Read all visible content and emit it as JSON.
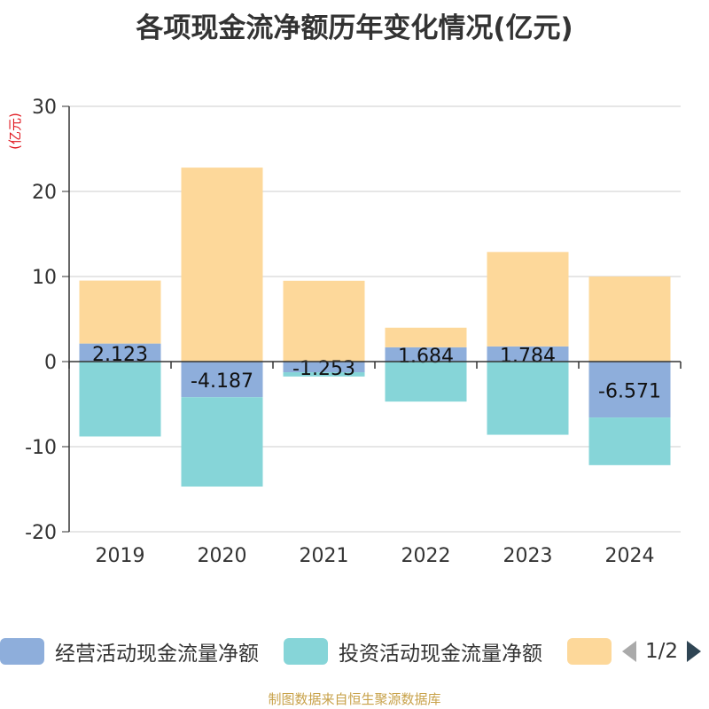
{
  "chart_data": {
    "type": "bar",
    "stacked": true,
    "title": "各项现金流净额历年变化情况(亿元)",
    "ylabel": "(亿元)",
    "xlabel": "",
    "ylim": [
      -20,
      30
    ],
    "yticks": [
      30,
      20,
      10,
      0,
      -10,
      -20
    ],
    "categories": [
      "2019",
      "2020",
      "2021",
      "2022",
      "2023",
      "2024"
    ],
    "series": [
      {
        "name": "经营活动现金流量净额",
        "color": "#8eaedb",
        "values": [
          2.123,
          -4.187,
          -1.253,
          1.684,
          1.784,
          -6.571
        ],
        "labels": [
          "2.123",
          "-4.187",
          "-1.253",
          "1.684",
          "1.784",
          "-6.571"
        ]
      },
      {
        "name": "投资活动现金流量净额",
        "color": "#86d5d8",
        "values": [
          -8.8,
          -10.5,
          -0.5,
          -4.7,
          -8.6,
          -5.6
        ]
      },
      {
        "name": "",
        "color": "#fdd89a",
        "values": [
          7.4,
          22.8,
          9.5,
          2.3,
          11.1,
          10.0
        ]
      }
    ],
    "legend": {
      "position": "bottom",
      "page": "1/2"
    },
    "source": "制图数据来自恒生聚源数据库"
  }
}
